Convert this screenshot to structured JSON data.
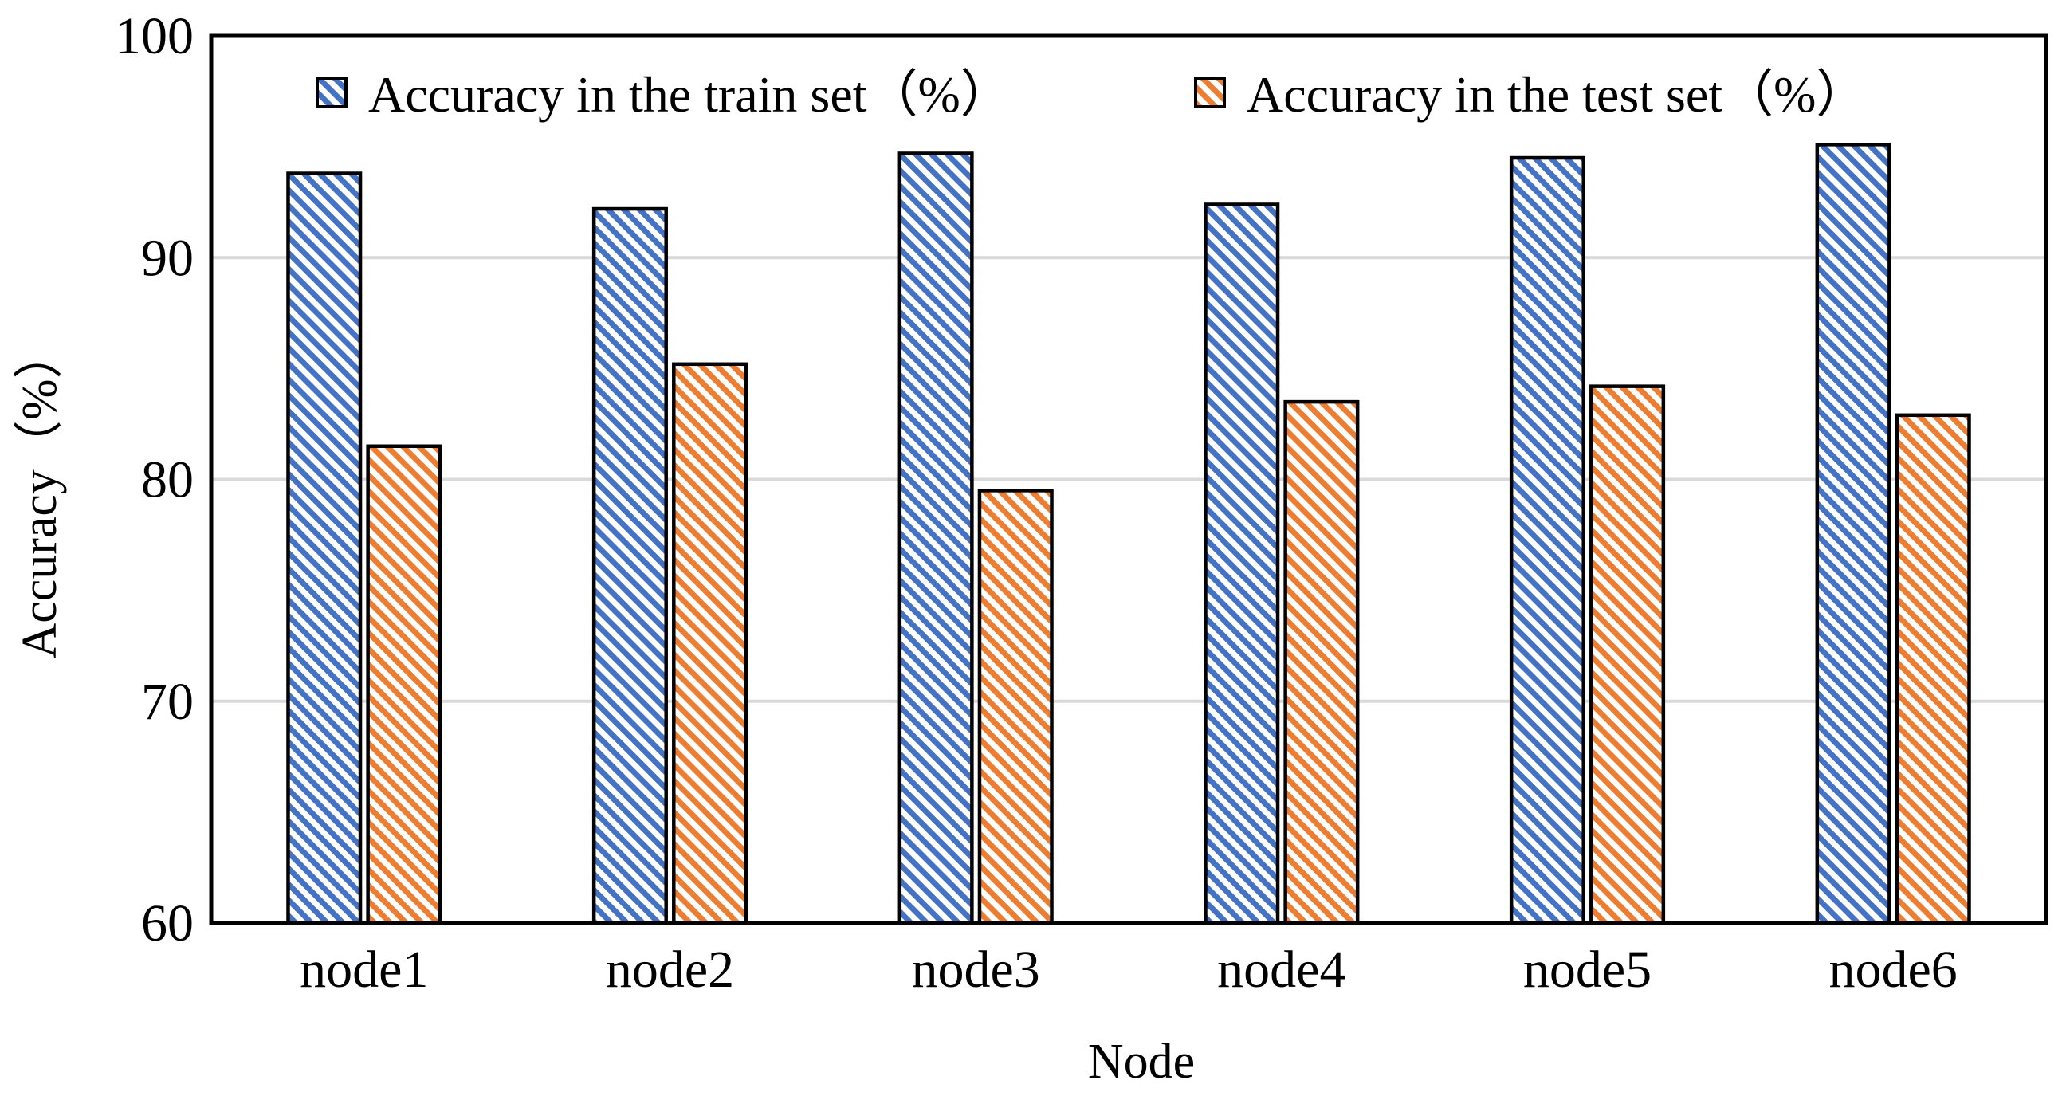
{
  "chart_data": {
    "type": "bar",
    "title": "",
    "xlabel": "Node",
    "ylabel": "Accuracy（%）",
    "categories": [
      "node1",
      "node2",
      "node3",
      "node4",
      "node5",
      "node6"
    ],
    "series": [
      {
        "name": "Accuracy in the train set（%）",
        "values": [
          93.8,
          92.2,
          94.7,
          92.4,
          94.5,
          95.1
        ],
        "color": "#4472C4",
        "pattern": "diagonal-stripes"
      },
      {
        "name": "Accuracy in the test set（%）",
        "values": [
          81.5,
          85.2,
          79.5,
          83.5,
          84.2,
          82.9
        ],
        "color": "#ED7D31",
        "pattern": "diagonal-stripes"
      }
    ],
    "ylim": [
      60,
      100
    ],
    "yticks": [
      60,
      70,
      80,
      90,
      100
    ],
    "grid": true,
    "legend_position": "top"
  }
}
